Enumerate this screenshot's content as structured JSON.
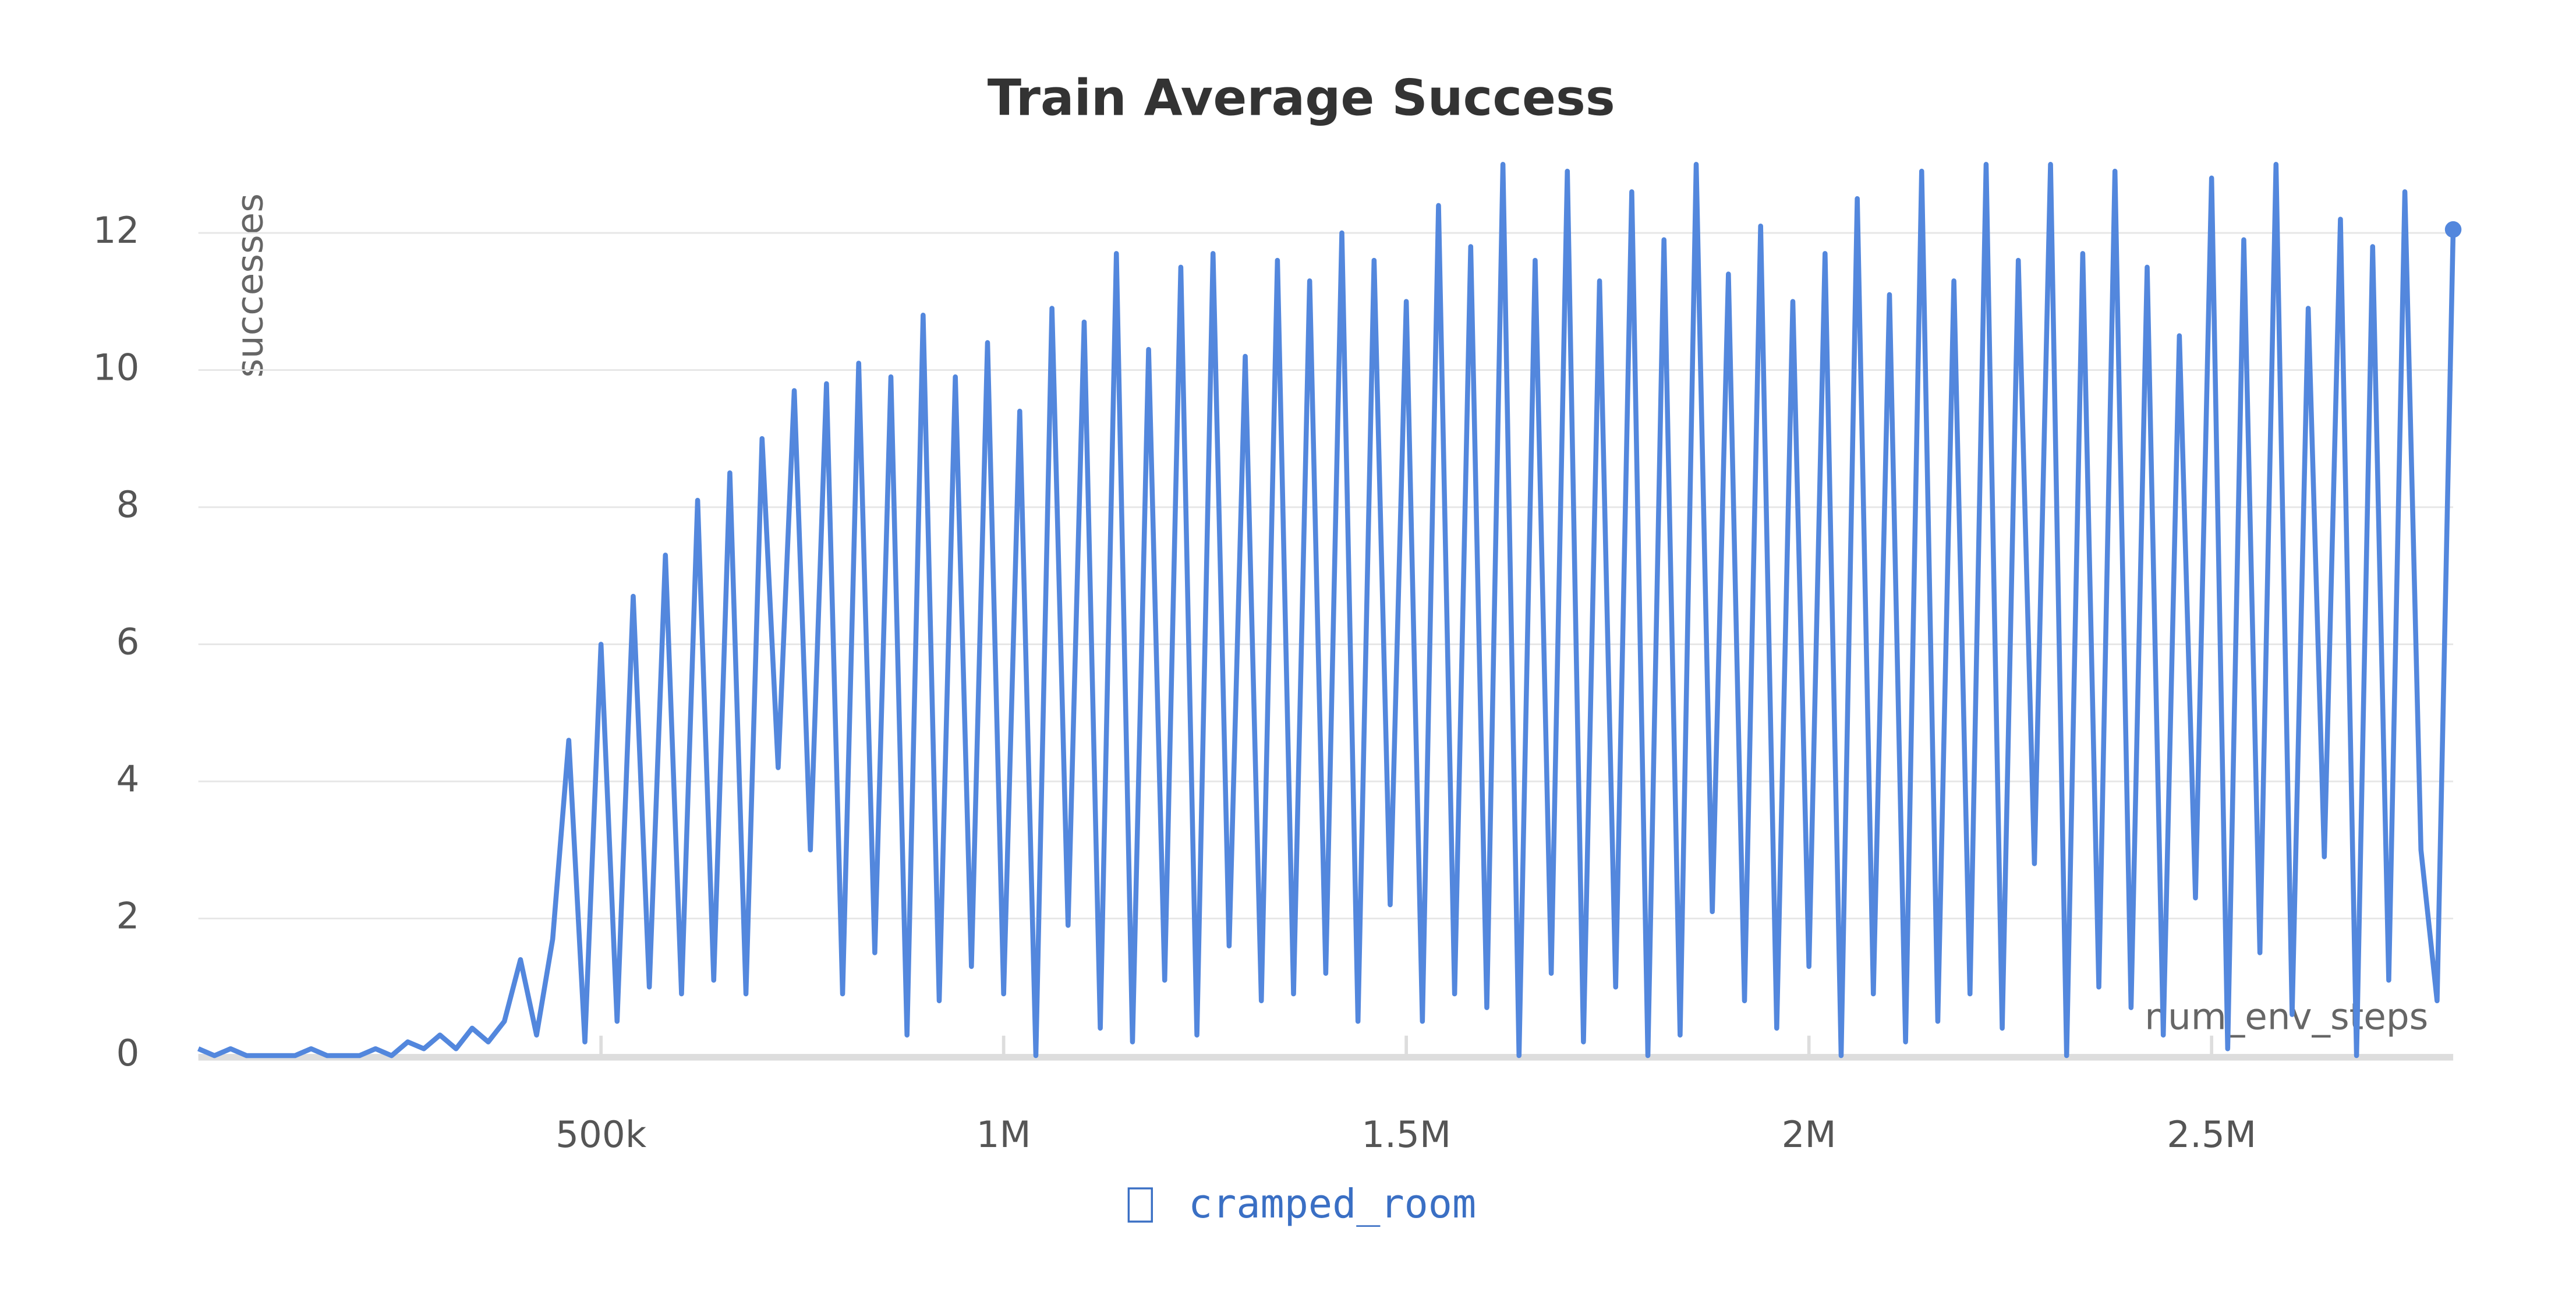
{
  "chart_data": {
    "type": "line",
    "title": "Train Average Success",
    "y_label": "successes",
    "x_label": "num_env_steps",
    "xlim": [
      0,
      2800000
    ],
    "ylim": [
      0,
      13
    ],
    "xticks": [
      {
        "value": 500000,
        "label": "500k"
      },
      {
        "value": 1000000,
        "label": "1M"
      },
      {
        "value": 1500000,
        "label": "1.5M"
      },
      {
        "value": 2000000,
        "label": "2M"
      },
      {
        "value": 2500000,
        "label": "2.5M"
      }
    ],
    "yticks": [
      0,
      2,
      4,
      6,
      8,
      10,
      12
    ],
    "grid": true,
    "x": [
      0,
      20000,
      40000,
      60000,
      80000,
      100000,
      120000,
      140000,
      160000,
      180000,
      200000,
      220000,
      240000,
      260000,
      280000,
      300000,
      320000,
      340000,
      360000,
      380000,
      400000,
      420000,
      440000,
      460000,
      480000,
      500000,
      520000,
      540000,
      560000,
      580000,
      600000,
      620000,
      640000,
      660000,
      680000,
      700000,
      720000,
      740000,
      760000,
      780000,
      800000,
      820000,
      840000,
      860000,
      880000,
      900000,
      920000,
      940000,
      960000,
      980000,
      1000000,
      1020000,
      1040000,
      1060000,
      1080000,
      1100000,
      1120000,
      1140000,
      1160000,
      1180000,
      1200000,
      1220000,
      1240000,
      1260000,
      1280000,
      1300000,
      1320000,
      1340000,
      1360000,
      1380000,
      1400000,
      1420000,
      1440000,
      1460000,
      1480000,
      1500000,
      1520000,
      1540000,
      1560000,
      1580000,
      1600000,
      1620000,
      1640000,
      1660000,
      1680000,
      1700000,
      1720000,
      1740000,
      1760000,
      1780000,
      1800000,
      1820000,
      1840000,
      1860000,
      1880000,
      1900000,
      1920000,
      1940000,
      1960000,
      1980000,
      2000000,
      2020000,
      2040000,
      2060000,
      2080000,
      2100000,
      2120000,
      2140000,
      2160000,
      2180000,
      2200000,
      2220000,
      2240000,
      2260000,
      2280000,
      2300000,
      2320000,
      2340000,
      2360000,
      2380000,
      2400000,
      2420000,
      2440000,
      2460000,
      2480000,
      2500000,
      2520000,
      2540000,
      2560000,
      2580000,
      2600000,
      2620000,
      2640000,
      2660000,
      2680000,
      2700000,
      2720000,
      2740000,
      2760000,
      2780000,
      2800000
    ],
    "series": [
      {
        "name": "cramped_room",
        "color": "#5387dd",
        "values": [
          0.1,
          0,
          0.1,
          0,
          0,
          0,
          0,
          0.1,
          0,
          0,
          0,
          0.1,
          0,
          0.2,
          0.1,
          0.3,
          0.1,
          0.4,
          0.2,
          0.5,
          1.4,
          0.3,
          1.7,
          4.6,
          0.2,
          6,
          0.5,
          6.7,
          1,
          7.3,
          0.9,
          8.1,
          1.1,
          8.5,
          0.9,
          9,
          4.2,
          9.7,
          3,
          9.8,
          0.9,
          10.1,
          1.5,
          9.9,
          0.3,
          10.8,
          0.8,
          9.9,
          1.3,
          10.4,
          0.9,
          9.4,
          0,
          10.9,
          1.9,
          10.7,
          0.4,
          11.7,
          0.2,
          10.3,
          1.1,
          11.5,
          0.3,
          11.7,
          1.6,
          10.2,
          0.8,
          11.6,
          0.9,
          11.3,
          1.2,
          12,
          0.5,
          11.6,
          2.2,
          11,
          0.5,
          12.4,
          0.9,
          11.8,
          0.7,
          13,
          0,
          11.6,
          1.2,
          12.9,
          0.2,
          11.3,
          1.0,
          12.6,
          0,
          11.9,
          0.3,
          13,
          2.1,
          11.4,
          0.8,
          12.1,
          0.4,
          11,
          1.3,
          11.7,
          0,
          12.5,
          0.9,
          11.1,
          0.2,
          12.9,
          0.5,
          11.3,
          0.9,
          13,
          0.4,
          11.6,
          2.8,
          13,
          0,
          11.7,
          1.0,
          12.9,
          0.7,
          11.5,
          0.3,
          10.5,
          2.3,
          12.8,
          0.1,
          11.9,
          1.5,
          13,
          0.6,
          10.9,
          2.9,
          12.2,
          0,
          11.8,
          1.1,
          12.6,
          3,
          0.8,
          12.05
        ]
      }
    ]
  }
}
